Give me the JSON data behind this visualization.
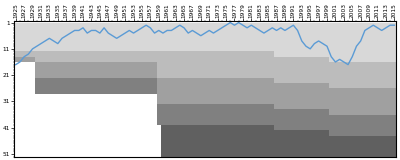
{
  "years": [
    1925,
    1926,
    1927,
    1928,
    1929,
    1930,
    1931,
    1932,
    1933,
    1934,
    1935,
    1936,
    1937,
    1938,
    1939,
    1940,
    1941,
    1942,
    1943,
    1944,
    1945,
    1946,
    1947,
    1948,
    1949,
    1950,
    1951,
    1952,
    1953,
    1954,
    1955,
    1956,
    1957,
    1958,
    1959,
    1960,
    1961,
    1962,
    1963,
    1964,
    1965,
    1966,
    1967,
    1968,
    1969,
    1970,
    1971,
    1972,
    1973,
    1974,
    1975,
    1976,
    1977,
    1978,
    1979,
    1980,
    1981,
    1982,
    1983,
    1984,
    1985,
    1986,
    1987,
    1988,
    1989,
    1990,
    1991,
    1992,
    1993,
    1994,
    1995,
    1996,
    1997,
    1998,
    1999,
    2000,
    2001,
    2002,
    2003,
    2004,
    2005,
    2006,
    2007,
    2008,
    2009,
    2010,
    2011,
    2012,
    2013,
    2014,
    2015
  ],
  "positions": [
    17,
    16,
    14,
    13,
    11,
    10,
    9,
    8,
    7,
    8,
    9,
    7,
    6,
    5,
    4,
    4,
    3,
    5,
    4,
    4,
    5,
    3,
    5,
    6,
    7,
    6,
    5,
    4,
    5,
    4,
    3,
    2,
    3,
    5,
    4,
    5,
    4,
    4,
    3,
    2,
    3,
    5,
    4,
    5,
    6,
    5,
    4,
    5,
    4,
    3,
    2,
    1,
    2,
    1,
    2,
    3,
    2,
    3,
    4,
    5,
    4,
    3,
    4,
    3,
    4,
    3,
    2,
    4,
    8,
    10,
    11,
    9,
    8,
    9,
    10,
    14,
    16,
    15,
    16,
    17,
    14,
    10,
    8,
    4,
    3,
    2,
    3,
    4,
    3,
    2,
    2
  ],
  "line_color": "#5b9bd5",
  "line_width": 1.0,
  "bg_color": "#ffffff",
  "border_color": "#000000",
  "yticks": [
    1,
    11,
    21,
    31,
    41,
    51
  ],
  "ylim_bottom": 52,
  "ylim_top": 0.5,
  "xtick_start": 1925,
  "xtick_end": 2015,
  "xtick_step": 2,
  "tick_fontsize": 4.2,
  "band_colors": [
    "#d8d8d8",
    "#bcbcbc",
    "#a0a0a0",
    "#808080",
    "#606060"
  ],
  "tier_boundaries": [
    [
      1925,
      8,
      12,
      14,
      0,
      0
    ],
    [
      1930,
      8,
      12,
      14,
      0,
      0
    ],
    [
      1931,
      8,
      16,
      22,
      28,
      0
    ],
    [
      1940,
      8,
      16,
      22,
      28,
      0
    ],
    [
      1947,
      8,
      16,
      24,
      32,
      0
    ],
    [
      1955,
      8,
      16,
      24,
      32,
      0
    ],
    [
      1960,
      8,
      16,
      24,
      32,
      38
    ],
    [
      1970,
      8,
      16,
      24,
      32,
      42
    ],
    [
      1975,
      8,
      16,
      24,
      32,
      44
    ],
    [
      1985,
      8,
      16,
      26,
      36,
      48
    ],
    [
      1990,
      8,
      16,
      26,
      36,
      48
    ],
    [
      1995,
      8,
      16,
      26,
      36,
      48
    ],
    [
      1999,
      8,
      16,
      26,
      36,
      48
    ],
    [
      2000,
      8,
      16,
      26,
      36,
      52
    ],
    [
      2015,
      8,
      16,
      26,
      36,
      52
    ]
  ]
}
